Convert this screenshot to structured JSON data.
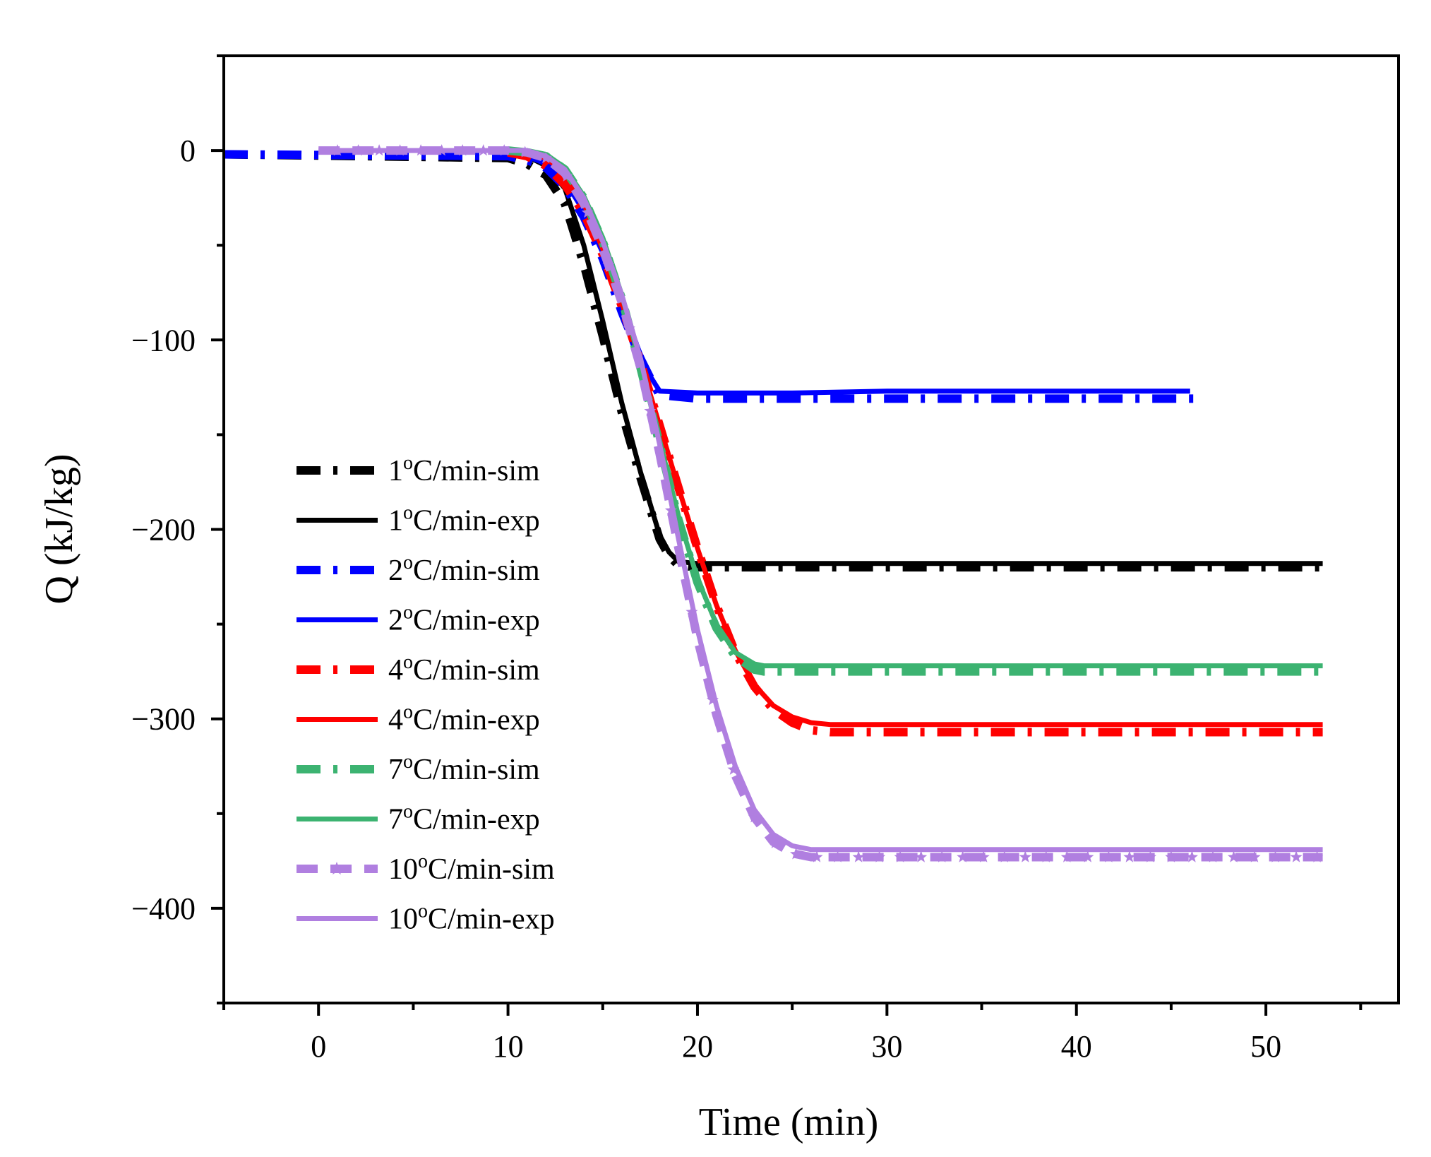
{
  "chart_data": {
    "type": "line",
    "title": "",
    "xlabel": "Time (min)",
    "ylabel": "Q (kJ/kg)",
    "xlim": [
      -5,
      57
    ],
    "ylim": [
      -450,
      50
    ],
    "xticks": [
      0,
      10,
      20,
      30,
      40,
      50
    ],
    "yticks": [
      0,
      -100,
      -200,
      -300,
      -400
    ],
    "xtick_labels": [
      "0",
      "10",
      "20",
      "30",
      "40",
      "50"
    ],
    "ytick_labels": [
      "0",
      "−100",
      "−200",
      "−300",
      "−400"
    ],
    "legend_position": "left-center",
    "series": [
      {
        "name": "1°C/min-sim",
        "base": "1",
        "suffix": "C/min-sim",
        "color": "#000000",
        "style": "dashdot",
        "x": [
          -5,
          10,
          11,
          12,
          13,
          14,
          15,
          16,
          17,
          18,
          18.5,
          19,
          20,
          25,
          30,
          40,
          50,
          53
        ],
        "y": [
          -2,
          -4,
          -7,
          -13,
          -28,
          -60,
          -98,
          -138,
          -173,
          -205,
          -214,
          -219,
          -220,
          -220,
          -220,
          -220,
          -220,
          -220
        ]
      },
      {
        "name": "1°C/min-exp",
        "base": "1",
        "suffix": "C/min-exp",
        "color": "#000000",
        "style": "solid",
        "x": [
          10,
          11,
          12,
          13,
          14,
          15,
          16,
          17,
          18,
          18.5,
          19,
          20,
          25,
          30,
          40,
          50,
          53
        ],
        "y": [
          -1,
          -3,
          -8,
          -20,
          -50,
          -90,
          -133,
          -170,
          -203,
          -212,
          -217,
          -218,
          -218,
          -218,
          -218,
          -218,
          -218
        ]
      },
      {
        "name": "2°C/min-sim",
        "base": "2",
        "suffix": "C/min-sim",
        "color": "#0000ff",
        "style": "dashdot",
        "x": [
          -5,
          10,
          11,
          12,
          13,
          14,
          15,
          16,
          17,
          17.5,
          18,
          20,
          25,
          30,
          40,
          46.5
        ],
        "y": [
          -2,
          -3,
          -5,
          -9,
          -19,
          -35,
          -57,
          -85,
          -110,
          -120,
          -129,
          -131,
          -131,
          -131,
          -131,
          -131
        ]
      },
      {
        "name": "2°C/min-exp",
        "base": "2",
        "suffix": "C/min-exp",
        "color": "#0000ff",
        "style": "solid",
        "x": [
          10,
          11,
          12,
          13,
          14,
          15,
          16,
          17,
          17.5,
          18,
          20,
          25,
          30,
          40,
          46
        ],
        "y": [
          -1,
          -3,
          -7,
          -16,
          -32,
          -54,
          -82,
          -108,
          -119,
          -127,
          -128,
          -128,
          -127,
          -127,
          -127
        ]
      },
      {
        "name": "4°C/min-sim",
        "base": "4",
        "suffix": "C/min-sim",
        "color": "#ff0000",
        "style": "dashdot",
        "x": [
          10,
          11,
          12,
          13,
          14,
          15,
          16,
          17,
          18,
          19,
          20,
          21,
          22,
          23,
          24,
          25,
          26,
          27,
          30,
          40,
          53
        ],
        "y": [
          -1,
          -3,
          -8,
          -18,
          -33,
          -55,
          -82,
          -112,
          -145,
          -178,
          -210,
          -240,
          -265,
          -283,
          -295,
          -302,
          -306,
          -307,
          -307,
          -307,
          -307
        ]
      },
      {
        "name": "4°C/min-exp",
        "base": "4",
        "suffix": "C/min-exp",
        "color": "#ff0000",
        "style": "solid",
        "x": [
          10,
          11,
          12,
          13,
          14,
          15,
          16,
          17,
          18,
          19,
          20,
          21,
          22,
          23,
          24,
          25,
          26,
          27,
          30,
          40,
          53
        ],
        "y": [
          0,
          -1,
          -4,
          -12,
          -28,
          -52,
          -80,
          -112,
          -145,
          -178,
          -210,
          -240,
          -264,
          -282,
          -293,
          -299,
          -302,
          -303,
          -303,
          -303,
          -303
        ]
      },
      {
        "name": "7°C/min-sim",
        "base": "7",
        "suffix": "C/min-sim",
        "color": "#3cb371",
        "style": "dashdot",
        "x": [
          10,
          11,
          12,
          13,
          14,
          15,
          16,
          17,
          18,
          19,
          20,
          21,
          22,
          23,
          23.5,
          25,
          30,
          40,
          53
        ],
        "y": [
          0,
          -1,
          -3,
          -10,
          -25,
          -48,
          -78,
          -115,
          -155,
          -195,
          -228,
          -252,
          -267,
          -274,
          -275,
          -275,
          -275,
          -275,
          -275
        ]
      },
      {
        "name": "7°C/min-exp",
        "base": "7",
        "suffix": "C/min-exp",
        "color": "#3cb371",
        "style": "solid",
        "x": [
          10,
          11,
          12,
          13,
          14,
          15,
          16,
          17,
          18,
          19,
          20,
          21,
          22,
          23,
          23.5,
          25,
          30,
          40,
          53
        ],
        "y": [
          0,
          0,
          -2,
          -9,
          -24,
          -46,
          -76,
          -113,
          -153,
          -193,
          -226,
          -250,
          -265,
          -271,
          -272,
          -272,
          -272,
          -272,
          -272
        ]
      },
      {
        "name": "10°C/min-sim",
        "base": "10",
        "suffix": "C/min-sim",
        "color": "#b07fe0",
        "style": "dash-star",
        "x": [
          0,
          10,
          11,
          12,
          13,
          14,
          15,
          16,
          17,
          18,
          19,
          20,
          21,
          22,
          23,
          24,
          25,
          26,
          30,
          40,
          53
        ],
        "y": [
          0,
          0,
          -1,
          -4,
          -12,
          -28,
          -52,
          -80,
          -115,
          -160,
          -210,
          -258,
          -298,
          -330,
          -352,
          -365,
          -371,
          -373,
          -373,
          -373,
          -373
        ]
      },
      {
        "name": "10°C/min-exp",
        "base": "10",
        "suffix": "C/min-exp",
        "color": "#b07fe0",
        "style": "solid",
        "x": [
          0,
          10,
          11,
          12,
          13,
          14,
          15,
          16,
          17,
          18,
          19,
          20,
          21,
          22,
          23,
          24,
          25,
          26,
          30,
          40,
          53
        ],
        "y": [
          0,
          0,
          0,
          -3,
          -10,
          -25,
          -48,
          -76,
          -110,
          -155,
          -205,
          -253,
          -293,
          -325,
          -348,
          -361,
          -367,
          -369,
          -369,
          -369,
          -369
        ]
      }
    ]
  }
}
